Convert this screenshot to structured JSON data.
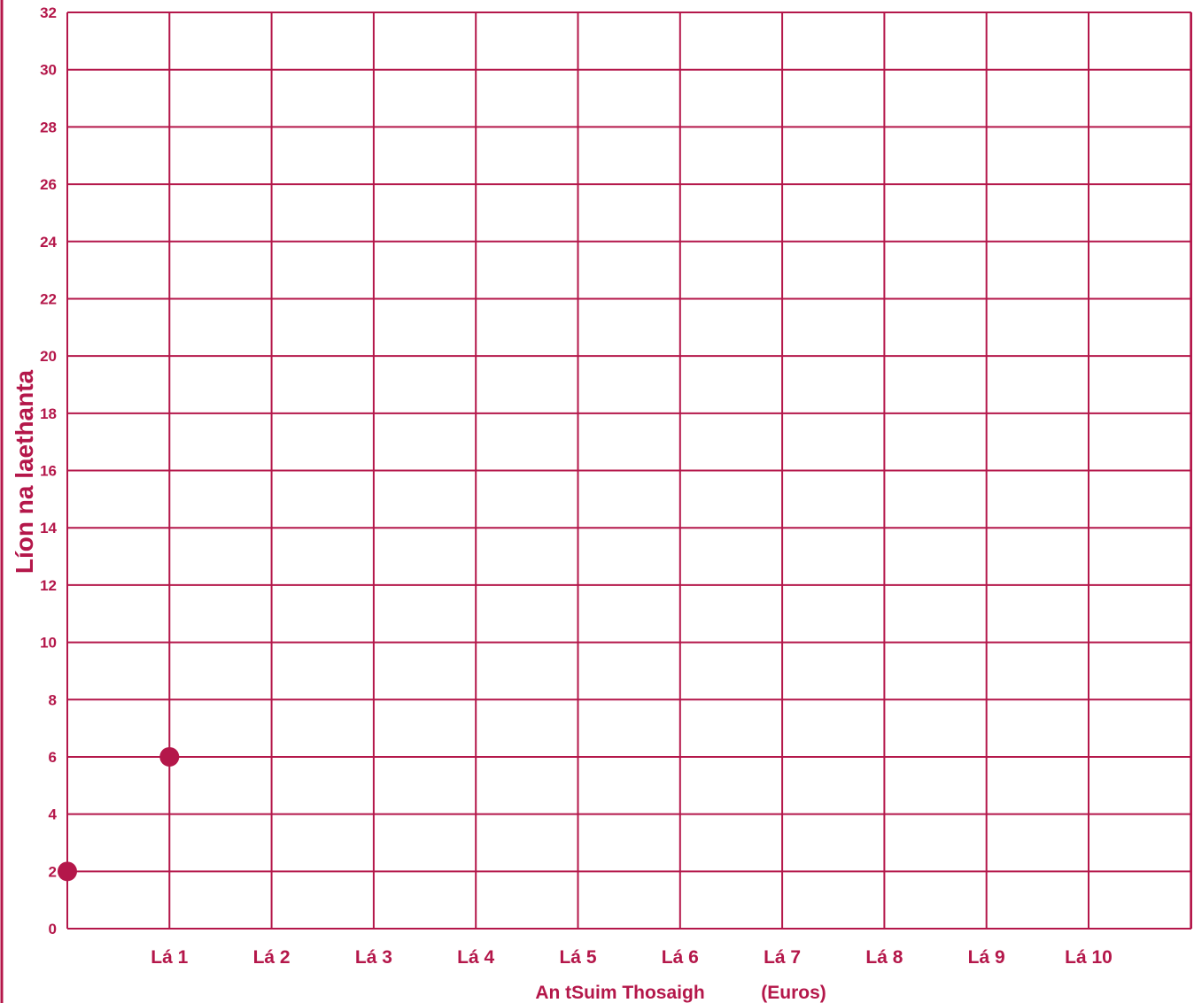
{
  "chart_data": {
    "type": "scatter",
    "categories": [
      "",
      "Lá 1",
      "Lá 2",
      "Lá 3",
      "Lá 4",
      "Lá 5",
      "Lá 6",
      "Lá 7",
      "Lá 8",
      "Lá 9",
      "Lá 10"
    ],
    "x": [
      0,
      1,
      2,
      3,
      4,
      5,
      6,
      7,
      8,
      9,
      10
    ],
    "xlim": [
      0,
      11
    ],
    "ylim": [
      0,
      32
    ],
    "yticks": [
      0,
      2,
      4,
      6,
      8,
      10,
      12,
      14,
      16,
      18,
      20,
      22,
      24,
      26,
      28,
      30,
      32
    ],
    "ytick_labels": [
      "0",
      "2",
      "4",
      "6",
      "8",
      "10",
      "12",
      "14",
      "16",
      "18",
      "20",
      "22",
      "24",
      "26",
      "28",
      "30",
      "32"
    ],
    "series": [
      {
        "points": [
          {
            "x": 0,
            "y": 2
          },
          {
            "x": 1,
            "y": 6
          }
        ]
      }
    ],
    "ylabel": "Líon na laethanta",
    "xlabel_part1": "An tSuim Thosaigh",
    "xlabel_part2": "(Euros)",
    "grid": true,
    "color": "#b4174a"
  }
}
